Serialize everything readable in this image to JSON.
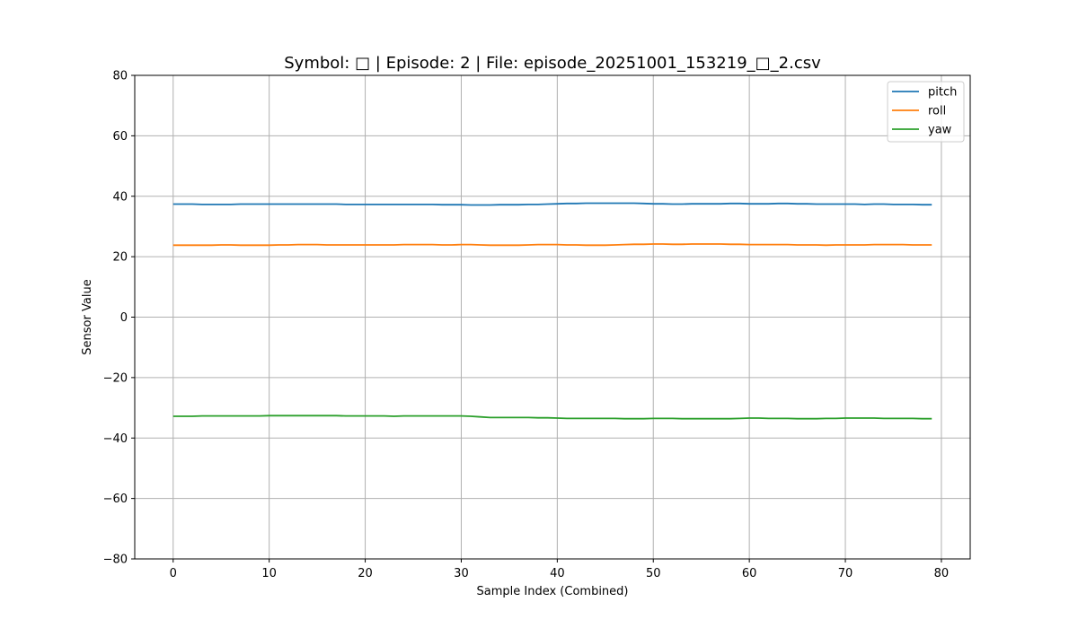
{
  "chart_data": {
    "type": "line",
    "title": "Symbol: □ | Episode: 2 | File: episode_20251001_153219_□_2.csv",
    "xlabel": "Sample Index (Combined)",
    "ylabel": "Sensor Value",
    "xlim": [
      -4,
      83
    ],
    "ylim": [
      -80,
      80
    ],
    "xticks": [
      0,
      10,
      20,
      30,
      40,
      50,
      60,
      70,
      80
    ],
    "yticks": [
      -80,
      -60,
      -40,
      -20,
      0,
      20,
      40,
      60,
      80
    ],
    "grid": true,
    "legend_position": "top-right",
    "x": [
      0,
      1,
      2,
      3,
      4,
      5,
      6,
      7,
      8,
      9,
      10,
      11,
      12,
      13,
      14,
      15,
      16,
      17,
      18,
      19,
      20,
      21,
      22,
      23,
      24,
      25,
      26,
      27,
      28,
      29,
      30,
      31,
      32,
      33,
      34,
      35,
      36,
      37,
      38,
      39,
      40,
      41,
      42,
      43,
      44,
      45,
      46,
      47,
      48,
      49,
      50,
      51,
      52,
      53,
      54,
      55,
      56,
      57,
      58,
      59,
      60,
      61,
      62,
      63,
      64,
      65,
      66,
      67,
      68,
      69,
      70,
      71,
      72,
      73,
      74,
      75,
      76,
      77,
      78,
      79
    ],
    "series": [
      {
        "name": "pitch",
        "color": "#1f77b4",
        "values": [
          37.4,
          37.4,
          37.4,
          37.3,
          37.3,
          37.3,
          37.3,
          37.4,
          37.4,
          37.4,
          37.4,
          37.4,
          37.4,
          37.4,
          37.4,
          37.4,
          37.4,
          37.4,
          37.3,
          37.3,
          37.3,
          37.3,
          37.3,
          37.3,
          37.3,
          37.3,
          37.3,
          37.3,
          37.2,
          37.2,
          37.2,
          37.1,
          37.1,
          37.1,
          37.2,
          37.2,
          37.2,
          37.3,
          37.3,
          37.4,
          37.5,
          37.6,
          37.6,
          37.7,
          37.7,
          37.7,
          37.7,
          37.7,
          37.7,
          37.6,
          37.5,
          37.5,
          37.4,
          37.4,
          37.5,
          37.5,
          37.5,
          37.5,
          37.6,
          37.6,
          37.5,
          37.5,
          37.5,
          37.6,
          37.6,
          37.5,
          37.5,
          37.4,
          37.4,
          37.4,
          37.4,
          37.4,
          37.3,
          37.4,
          37.4,
          37.3,
          37.3,
          37.3,
          37.2,
          37.2
        ]
      },
      {
        "name": "roll",
        "color": "#ff7f0e",
        "values": [
          23.8,
          23.8,
          23.8,
          23.8,
          23.8,
          23.9,
          23.9,
          23.8,
          23.8,
          23.8,
          23.8,
          23.9,
          23.9,
          24.0,
          24.0,
          24.0,
          23.9,
          23.9,
          23.9,
          23.9,
          23.9,
          23.9,
          23.9,
          23.9,
          24.0,
          24.0,
          24.0,
          24.0,
          23.9,
          23.9,
          24.0,
          24.0,
          23.9,
          23.8,
          23.8,
          23.8,
          23.8,
          23.9,
          24.0,
          24.0,
          24.0,
          23.9,
          23.9,
          23.8,
          23.8,
          23.8,
          23.9,
          24.0,
          24.1,
          24.1,
          24.2,
          24.2,
          24.1,
          24.1,
          24.2,
          24.2,
          24.2,
          24.2,
          24.1,
          24.1,
          24.0,
          24.0,
          24.0,
          24.0,
          24.0,
          23.9,
          23.9,
          23.9,
          23.8,
          23.9,
          23.9,
          23.9,
          23.9,
          24.0,
          24.0,
          24.0,
          24.0,
          23.9,
          23.9,
          23.9
        ]
      },
      {
        "name": "yaw",
        "color": "#2ca02c",
        "values": [
          -32.8,
          -32.8,
          -32.8,
          -32.7,
          -32.7,
          -32.7,
          -32.7,
          -32.7,
          -32.7,
          -32.7,
          -32.6,
          -32.6,
          -32.6,
          -32.6,
          -32.6,
          -32.6,
          -32.6,
          -32.6,
          -32.7,
          -32.7,
          -32.7,
          -32.7,
          -32.7,
          -32.8,
          -32.7,
          -32.7,
          -32.7,
          -32.7,
          -32.7,
          -32.7,
          -32.7,
          -32.8,
          -33.0,
          -33.2,
          -33.2,
          -33.2,
          -33.2,
          -33.2,
          -33.3,
          -33.3,
          -33.4,
          -33.5,
          -33.5,
          -33.5,
          -33.5,
          -33.5,
          -33.5,
          -33.6,
          -33.6,
          -33.6,
          -33.5,
          -33.5,
          -33.5,
          -33.6,
          -33.6,
          -33.6,
          -33.6,
          -33.6,
          -33.6,
          -33.5,
          -33.4,
          -33.4,
          -33.5,
          -33.5,
          -33.5,
          -33.6,
          -33.6,
          -33.6,
          -33.5,
          -33.5,
          -33.4,
          -33.4,
          -33.4,
          -33.4,
          -33.5,
          -33.5,
          -33.5,
          -33.5,
          -33.6,
          -33.6
        ]
      }
    ]
  }
}
